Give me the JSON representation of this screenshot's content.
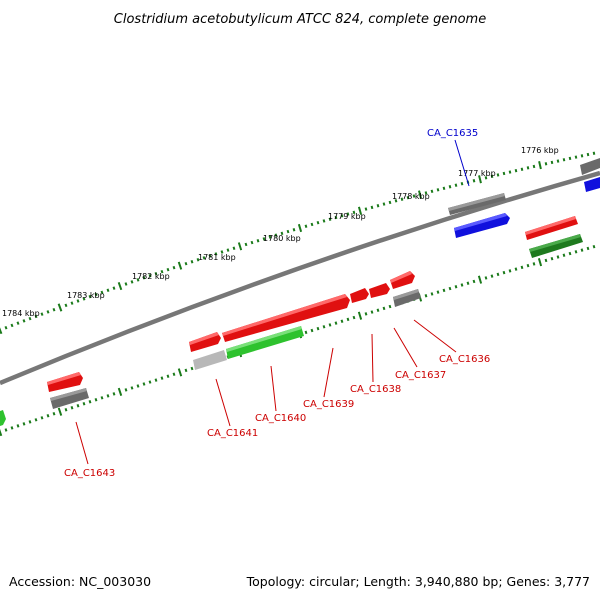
{
  "title": "Clostridium acetobutylicum ATCC 824, complete genome",
  "accession": "Accession: NC_003030",
  "topology": "Topology: circular; Length: 3,940,880 bp; Genes: 3,777",
  "colors": {
    "backbone": "#777777",
    "ticks": "#1a7a1a",
    "red": "#e01010",
    "green": "#2ec22e",
    "darkgreen": "#1e7a1e",
    "gray": "#6a6a6a",
    "lightgray": "#b8b8b8",
    "blue": "#1010dd",
    "label_red": "#cc0000",
    "label_blue": "#0000cc"
  },
  "kbp_labels": [
    "1776 kbp",
    "1777 kbp",
    "1778 kbp",
    "1779 kbp",
    "1780 kbp",
    "1781 kbp",
    "1782 kbp",
    "1783 kbp",
    "1784 kbp"
  ],
  "gene_labels": [
    {
      "text": "CA_C1635",
      "color": "blue"
    },
    {
      "text": "CA_C1636",
      "color": "red"
    },
    {
      "text": "CA_C1637",
      "color": "red"
    },
    {
      "text": "CA_C1638",
      "color": "red"
    },
    {
      "text": "CA_C1639",
      "color": "red"
    },
    {
      "text": "CA_C1640",
      "color": "red"
    },
    {
      "text": "CA_C1641",
      "color": "red"
    },
    {
      "text": "CA_C1643",
      "color": "red"
    }
  ]
}
